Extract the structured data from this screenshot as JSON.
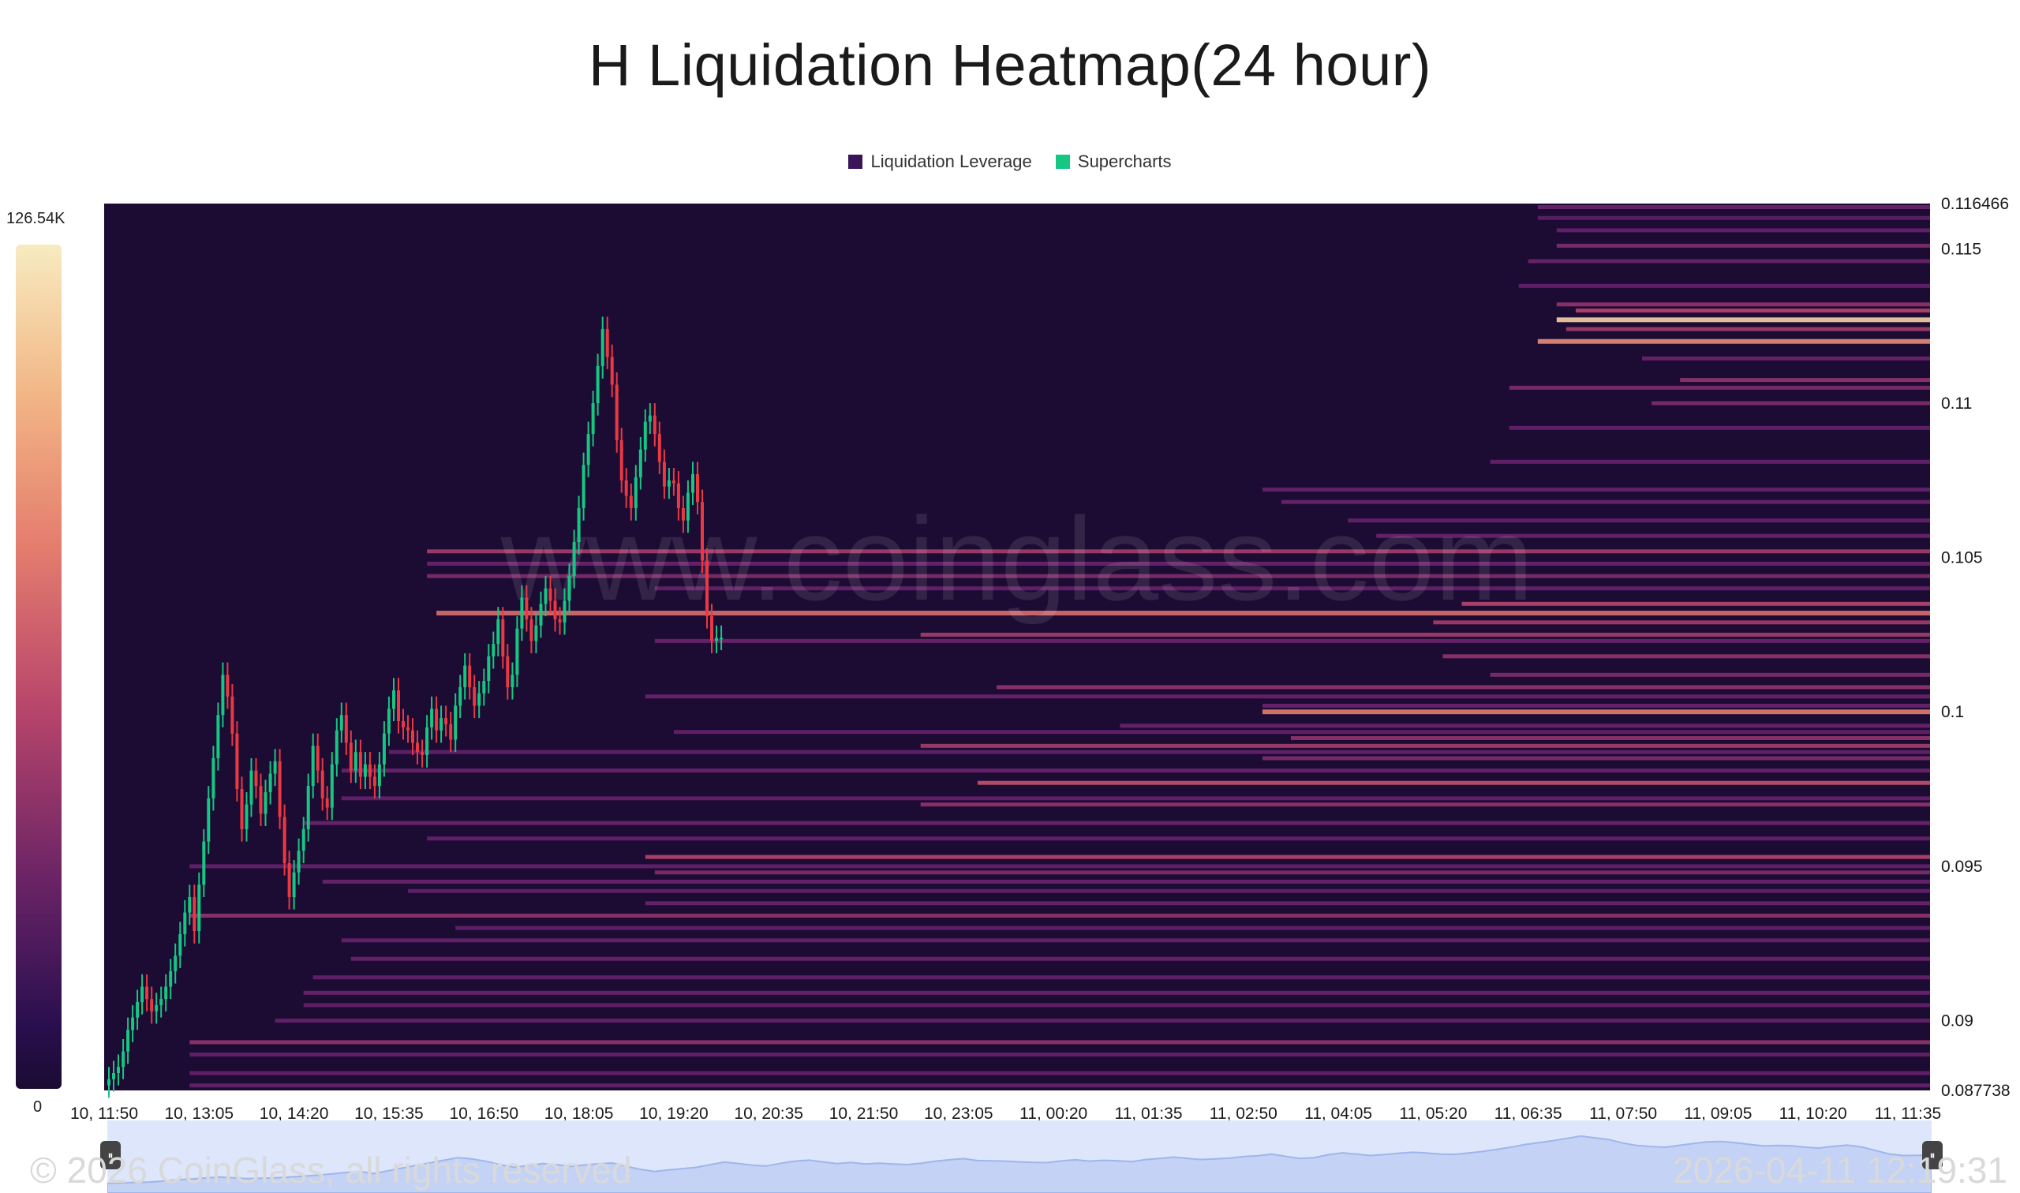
{
  "title": "H Liquidation Heatmap(24 hour)",
  "legend": [
    {
      "label": "Liquidation Leverage",
      "color": "#3b1457"
    },
    {
      "label": "Supercharts",
      "color": "#16c784"
    }
  ],
  "colorbar": {
    "max_label": "126.54K",
    "min_label": "0"
  },
  "watermark": "www.coinglass.com",
  "footer": {
    "copyright": "© 2026 CoinGlass, all rights reserved",
    "timestamp": "2026-04-11 12:19:31"
  },
  "colors": {
    "background": "#1c0b33",
    "up": "#16c784",
    "down": "#ea3943"
  },
  "chart_data": {
    "type": "heatmap",
    "title": "H Liquidation Heatmap(24 hour)",
    "x_tick_labels": [
      "10, 11:50",
      "10, 13:05",
      "10, 14:20",
      "10, 15:35",
      "10, 16:50",
      "10, 18:05",
      "10, 19:20",
      "10, 20:35",
      "10, 21:50",
      "10, 23:05",
      "11, 00:20",
      "11, 01:35",
      "11, 02:50",
      "11, 04:05",
      "11, 05:20",
      "11, 06:35",
      "11, 07:50",
      "11, 09:05",
      "11, 10:20",
      "11, 11:35"
    ],
    "y_tick_labels": [
      "0.116466",
      "0.115",
      "0.11",
      "0.105",
      "0.1",
      "0.095",
      "0.09",
      "0.087738"
    ],
    "y_tick_values": [
      0.116466,
      0.115,
      0.11,
      0.105,
      0.1,
      0.095,
      0.09,
      0.087738
    ],
    "ylim": [
      0.087738,
      0.116466
    ],
    "x_range_index": [
      0,
      19
    ],
    "price_series_index_step": 0.05,
    "price_series": [
      0.0879,
      0.0881,
      0.0883,
      0.0885,
      0.089,
      0.0897,
      0.0901,
      0.0906,
      0.0911,
      0.0907,
      0.0903,
      0.0905,
      0.0907,
      0.0911,
      0.0916,
      0.0921,
      0.0928,
      0.0935,
      0.094,
      0.0929,
      0.0944,
      0.0958,
      0.0972,
      0.0985,
      0.0999,
      0.1012,
      0.1005,
      0.0993,
      0.0975,
      0.0962,
      0.097,
      0.0981,
      0.0976,
      0.0967,
      0.0974,
      0.098,
      0.0984,
      0.0966,
      0.0951,
      0.094,
      0.0948,
      0.0955,
      0.0962,
      0.0976,
      0.0989,
      0.0981,
      0.0972,
      0.0969,
      0.0983,
      0.0994,
      0.0999,
      0.099,
      0.0981,
      0.0987,
      0.0979,
      0.0983,
      0.0979,
      0.0976,
      0.0983,
      0.0993,
      0.1001,
      0.1007,
      0.0997,
      0.0995,
      0.0994,
      0.099,
      0.0987,
      0.0986,
      0.0995,
      0.1001,
      0.0994,
      0.0998,
      0.0996,
      0.0991,
      0.1002,
      0.1008,
      0.1015,
      0.1008,
      0.1002,
      0.1006,
      0.101,
      0.1018,
      0.1022,
      0.103,
      0.1018,
      0.1008,
      0.1012,
      0.1027,
      0.1037,
      0.103,
      0.1023,
      0.1028,
      0.1035,
      0.104,
      0.1036,
      0.103,
      0.1029,
      0.1036,
      0.1044,
      0.1055,
      0.1066,
      0.108,
      0.109,
      0.11,
      0.1112,
      0.1124,
      0.1115,
      0.1106,
      0.1088,
      0.1075,
      0.107,
      0.1066,
      0.1076,
      0.1085,
      0.1094,
      0.1096,
      0.109,
      0.1081,
      0.1073,
      0.1075,
      0.1074,
      0.1066,
      0.1062,
      0.1071,
      0.1077,
      0.1068,
      0.1049,
      0.1031,
      0.1023,
      0.1024,
      0.1024
    ],
    "bands": [
      {
        "price": 0.11635,
        "x_start": 15.1,
        "intensity": 0.35
      },
      {
        "price": 0.116,
        "x_start": 15.1,
        "intensity": 0.25
      },
      {
        "price": 0.1156,
        "x_start": 15.3,
        "intensity": 0.3
      },
      {
        "price": 0.1151,
        "x_start": 15.3,
        "intensity": 0.4
      },
      {
        "price": 0.1146,
        "x_start": 15.0,
        "intensity": 0.35
      },
      {
        "price": 0.1138,
        "x_start": 14.9,
        "intensity": 0.3
      },
      {
        "price": 0.1132,
        "x_start": 15.3,
        "intensity": 0.45
      },
      {
        "price": 0.113,
        "x_start": 15.5,
        "intensity": 0.55
      },
      {
        "price": 0.1127,
        "x_start": 15.3,
        "intensity": 0.95
      },
      {
        "price": 0.1124,
        "x_start": 15.4,
        "intensity": 0.5
      },
      {
        "price": 0.112,
        "x_start": 15.1,
        "intensity": 0.8
      },
      {
        "price": 0.11145,
        "x_start": 16.2,
        "intensity": 0.35
      },
      {
        "price": 0.11075,
        "x_start": 16.6,
        "intensity": 0.45
      },
      {
        "price": 0.1105,
        "x_start": 14.8,
        "intensity": 0.4
      },
      {
        "price": 0.11,
        "x_start": 16.3,
        "intensity": 0.4
      },
      {
        "price": 0.1092,
        "x_start": 14.8,
        "intensity": 0.3
      },
      {
        "price": 0.1081,
        "x_start": 14.6,
        "intensity": 0.3
      },
      {
        "price": 0.1072,
        "x_start": 12.2,
        "intensity": 0.3
      },
      {
        "price": 0.1068,
        "x_start": 12.4,
        "intensity": 0.35
      },
      {
        "price": 0.1062,
        "x_start": 13.1,
        "intensity": 0.3
      },
      {
        "price": 0.1057,
        "x_start": 13.4,
        "intensity": 0.35
      },
      {
        "price": 0.1052,
        "x_start": 3.4,
        "intensity": 0.5
      },
      {
        "price": 0.1048,
        "x_start": 3.4,
        "intensity": 0.35
      },
      {
        "price": 0.1044,
        "x_start": 3.4,
        "intensity": 0.4
      },
      {
        "price": 0.104,
        "x_start": 5.8,
        "intensity": 0.3
      },
      {
        "price": 0.1035,
        "x_start": 14.3,
        "intensity": 0.55
      },
      {
        "price": 0.1032,
        "x_start": 3.5,
        "intensity": 0.7
      },
      {
        "price": 0.1029,
        "x_start": 14.0,
        "intensity": 0.5
      },
      {
        "price": 0.1025,
        "x_start": 8.6,
        "intensity": 0.5
      },
      {
        "price": 0.1023,
        "x_start": 5.8,
        "intensity": 0.35
      },
      {
        "price": 0.1018,
        "x_start": 14.1,
        "intensity": 0.45
      },
      {
        "price": 0.1012,
        "x_start": 14.6,
        "intensity": 0.4
      },
      {
        "price": 0.1008,
        "x_start": 9.4,
        "intensity": 0.45
      },
      {
        "price": 0.1005,
        "x_start": 5.7,
        "intensity": 0.35
      },
      {
        "price": 0.1002,
        "x_start": 12.2,
        "intensity": 0.35
      },
      {
        "price": 0.1,
        "x_start": 12.2,
        "intensity": 0.75
      },
      {
        "price": 0.09955,
        "x_start": 10.7,
        "intensity": 0.35
      },
      {
        "price": 0.09935,
        "x_start": 6.0,
        "intensity": 0.3
      },
      {
        "price": 0.09915,
        "x_start": 12.5,
        "intensity": 0.45
      },
      {
        "price": 0.0989,
        "x_start": 8.6,
        "intensity": 0.5
      },
      {
        "price": 0.0987,
        "x_start": 3.0,
        "intensity": 0.3
      },
      {
        "price": 0.0985,
        "x_start": 12.2,
        "intensity": 0.4
      },
      {
        "price": 0.0981,
        "x_start": 2.5,
        "intensity": 0.35
      },
      {
        "price": 0.0977,
        "x_start": 9.2,
        "intensity": 0.6
      },
      {
        "price": 0.0972,
        "x_start": 2.5,
        "intensity": 0.3
      },
      {
        "price": 0.097,
        "x_start": 8.6,
        "intensity": 0.45
      },
      {
        "price": 0.0964,
        "x_start": 2.1,
        "intensity": 0.35
      },
      {
        "price": 0.0959,
        "x_start": 3.4,
        "intensity": 0.3
      },
      {
        "price": 0.0953,
        "x_start": 5.7,
        "intensity": 0.55
      },
      {
        "price": 0.095,
        "x_start": 0.9,
        "intensity": 0.3
      },
      {
        "price": 0.0948,
        "x_start": 5.8,
        "intensity": 0.4
      },
      {
        "price": 0.0945,
        "x_start": 2.3,
        "intensity": 0.35
      },
      {
        "price": 0.0942,
        "x_start": 3.2,
        "intensity": 0.3
      },
      {
        "price": 0.0938,
        "x_start": 5.7,
        "intensity": 0.35
      },
      {
        "price": 0.0934,
        "x_start": 0.9,
        "intensity": 0.45
      },
      {
        "price": 0.093,
        "x_start": 3.7,
        "intensity": 0.3
      },
      {
        "price": 0.0926,
        "x_start": 2.5,
        "intensity": 0.3
      },
      {
        "price": 0.092,
        "x_start": 2.6,
        "intensity": 0.35
      },
      {
        "price": 0.0914,
        "x_start": 2.2,
        "intensity": 0.3
      },
      {
        "price": 0.0909,
        "x_start": 2.1,
        "intensity": 0.35
      },
      {
        "price": 0.0905,
        "x_start": 2.1,
        "intensity": 0.3
      },
      {
        "price": 0.09,
        "x_start": 1.8,
        "intensity": 0.3
      },
      {
        "price": 0.0893,
        "x_start": 0.9,
        "intensity": 0.45
      },
      {
        "price": 0.0889,
        "x_start": 0.9,
        "intensity": 0.3
      },
      {
        "price": 0.0883,
        "x_start": 0.9,
        "intensity": 0.3
      },
      {
        "price": 0.0879,
        "x_start": 0.9,
        "intensity": 0.3
      }
    ]
  }
}
